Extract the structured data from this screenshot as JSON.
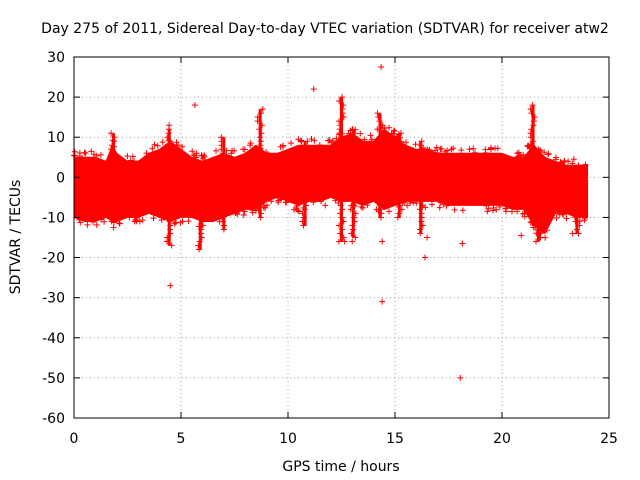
{
  "chart_data": {
    "type": "scatter",
    "title": "Day 275 of 2011, Sidereal Day-to-day VTEC variation (SDTVAR) for receiver atw2",
    "xlabel": "GPS time / hours",
    "ylabel": "SDTVAR / TECUs",
    "xlim": [
      0,
      25
    ],
    "ylim": [
      -60,
      30
    ],
    "xticks": [
      0,
      5,
      10,
      15,
      20,
      25
    ],
    "yticks": [
      -60,
      -50,
      -40,
      -30,
      -20,
      -10,
      0,
      10,
      20,
      30
    ],
    "grid": true,
    "marker": "+",
    "color": "#ff0000",
    "data_extent_hours": [
      0,
      24
    ],
    "band_envelope": {
      "x": [
        0.0,
        0.5,
        1.0,
        1.5,
        1.8,
        2.0,
        2.5,
        3.0,
        3.5,
        4.0,
        4.5,
        5.0,
        5.5,
        6.0,
        6.5,
        7.0,
        7.5,
        8.0,
        8.5,
        9.0,
        9.5,
        10.0,
        10.5,
        11.0,
        11.5,
        12.0,
        12.5,
        13.0,
        13.5,
        14.0,
        14.5,
        15.0,
        15.5,
        16.0,
        16.5,
        17.0,
        17.5,
        18.0,
        18.5,
        19.0,
        19.5,
        20.0,
        20.5,
        21.0,
        21.5,
        22.0,
        22.5,
        23.0,
        23.5,
        24.0
      ],
      "upper": [
        5,
        5,
        5,
        4,
        8,
        6,
        4,
        4,
        6,
        7,
        9,
        7,
        5,
        4,
        5,
        6,
        5,
        6,
        8,
        6,
        6,
        7,
        8,
        8,
        8,
        8,
        10,
        11,
        9,
        9,
        12,
        10,
        8,
        7,
        7,
        6,
        6,
        6,
        6,
        6,
        6,
        6,
        5,
        5,
        8,
        5,
        4,
        3,
        3,
        3
      ],
      "lower": [
        -10,
        -11,
        -11,
        -10,
        -11,
        -11,
        -10,
        -10,
        -9,
        -10,
        -11,
        -10,
        -10,
        -11,
        -11,
        -10,
        -9,
        -8,
        -8,
        -6,
        -5,
        -6,
        -7,
        -6,
        -6,
        -5,
        -6,
        -6,
        -7,
        -6,
        -8,
        -7,
        -6,
        -6,
        -6,
        -6,
        -7,
        -7,
        -7,
        -7,
        -7,
        -7,
        -8,
        -8,
        -12,
        -14,
        -9,
        -9,
        -10,
        -10
      ]
    },
    "spikes": [
      {
        "x": 1.85,
        "lo": -11,
        "hi": 11
      },
      {
        "x": 4.45,
        "lo": -17,
        "hi": 12
      },
      {
        "x": 5.9,
        "lo": -18,
        "hi": 3
      },
      {
        "x": 7.0,
        "lo": -13,
        "hi": 10
      },
      {
        "x": 8.7,
        "lo": -10,
        "hi": 17
      },
      {
        "x": 10.8,
        "lo": -12,
        "hi": 9
      },
      {
        "x": 12.5,
        "lo": -16,
        "hi": 20
      },
      {
        "x": 13.05,
        "lo": -15,
        "hi": 12
      },
      {
        "x": 14.3,
        "lo": -10,
        "hi": 16
      },
      {
        "x": 15.2,
        "lo": -10,
        "hi": 11
      },
      {
        "x": 16.2,
        "lo": -14,
        "hi": 9
      },
      {
        "x": 21.45,
        "lo": -12,
        "hi": 18
      },
      {
        "x": 21.7,
        "lo": -16,
        "hi": 7
      },
      {
        "x": 23.5,
        "lo": -14,
        "hi": 3
      }
    ],
    "outliers": [
      {
        "x": 4.5,
        "y": -27
      },
      {
        "x": 4.45,
        "y": 13
      },
      {
        "x": 5.65,
        "y": 18
      },
      {
        "x": 11.2,
        "y": 22
      },
      {
        "x": 12.65,
        "y": -16
      },
      {
        "x": 13.0,
        "y": -16
      },
      {
        "x": 14.35,
        "y": 27.5
      },
      {
        "x": 14.4,
        "y": -31
      },
      {
        "x": 14.4,
        "y": -16
      },
      {
        "x": 16.4,
        "y": -20
      },
      {
        "x": 16.5,
        "y": -15
      },
      {
        "x": 18.05,
        "y": -50
      },
      {
        "x": 18.15,
        "y": -16.5
      },
      {
        "x": 20.9,
        "y": -14.5
      },
      {
        "x": 23.3,
        "y": -14
      }
    ]
  }
}
